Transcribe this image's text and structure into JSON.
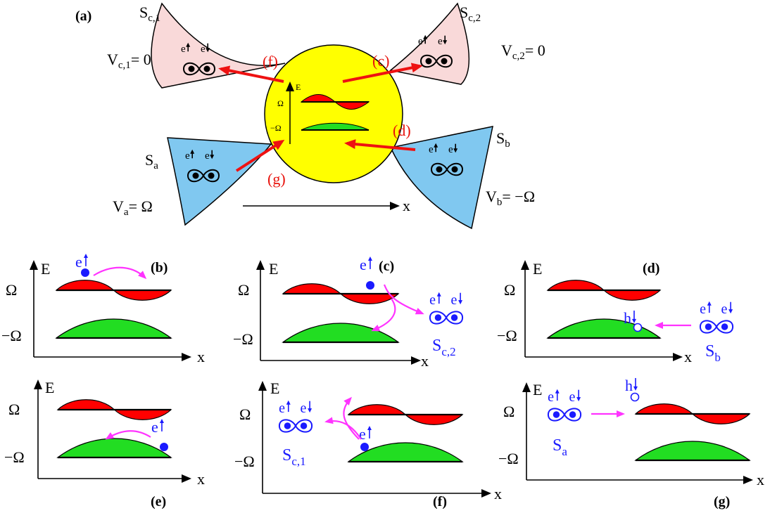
{
  "colors": {
    "red_wave": "#ff0000",
    "green_wave": "#22dd22",
    "pink_lead": "#f9d9d9",
    "blue_lead": "#80c8f0",
    "yellow_dot": "#ffff00",
    "red_arrow": "#ee1111",
    "magenta_arrow": "#ff33ff",
    "blue_text": "#1a1aff"
  },
  "panel_a": {
    "label": "(a)",
    "lead_c1": {
      "name": "S",
      "sub": "c,1",
      "volt_pre": "V",
      "volt_sub": "c,1",
      "volt_post": "= 0"
    },
    "lead_c2": {
      "name": "S",
      "sub": "c,2",
      "volt_pre": "V",
      "volt_sub": "c,2",
      "volt_post": "= 0"
    },
    "lead_a": {
      "name": "S",
      "sub": "a",
      "volt_pre": "V",
      "volt_sub": "a",
      "volt_post": "= Ω"
    },
    "lead_b": {
      "name": "S",
      "sub": "b",
      "volt_pre": "V",
      "volt_sub": "b",
      "volt_post": "= −Ω"
    },
    "e_label": "e",
    "arrow_labels": {
      "f": "(f)",
      "c": "(c)",
      "d": "(d)",
      "g": "(g)"
    },
    "dot_axis": {
      "e": "E",
      "omega": "Ω",
      "minus_omega": "−Ω"
    },
    "x_axis": "x"
  },
  "panels": [
    {
      "id": "b",
      "label": "(b)"
    },
    {
      "id": "c",
      "label": "(c)"
    },
    {
      "id": "d",
      "label": "(d)"
    },
    {
      "id": "e",
      "label": "(e)"
    },
    {
      "id": "f",
      "label": "(f)"
    },
    {
      "id": "g",
      "label": "(g)"
    }
  ],
  "axis": {
    "e": "E",
    "x": "x",
    "omega": "Ω",
    "minus_omega": "−Ω"
  },
  "particles": {
    "electron": "e",
    "hole": "h"
  },
  "lead_names": {
    "c2": {
      "name": "S",
      "sub": "c,2"
    },
    "b": {
      "name": "S",
      "sub": "b"
    },
    "c1": {
      "name": "S",
      "sub": "c,1"
    },
    "a": {
      "name": "S",
      "sub": "a"
    }
  }
}
